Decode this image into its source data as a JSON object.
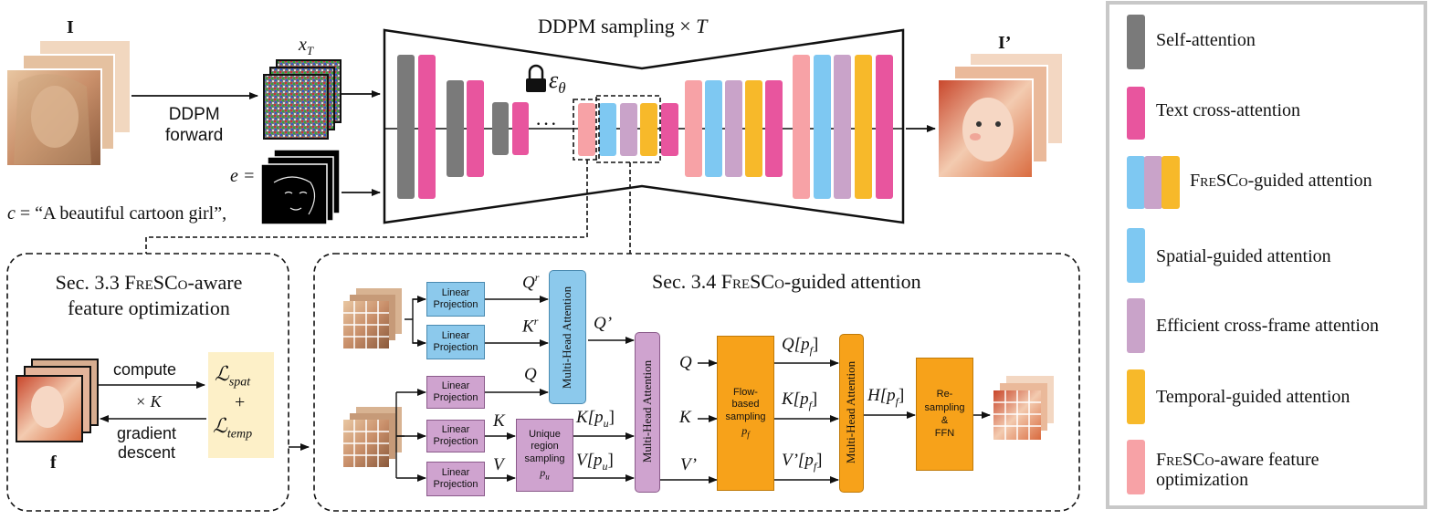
{
  "colors": {
    "self_attention": "#7a7a7a",
    "text_cross_attention": "#e8559e",
    "spatial": "#7ec8f2",
    "efficient": "#c9a3c9",
    "temporal": "#f7b92a",
    "fresco_aware": "#f7a2a6",
    "linear_blue": "#8cc9ec",
    "linear_purple": "#cfa3cf",
    "flow_orange": "#f7a21a",
    "loss_bg": "#fdf0c8"
  },
  "header": {
    "input_label": "I",
    "output_label": "I’",
    "xt_label": "x",
    "xt_sub": "T",
    "ddpm_title": "DDPM sampling × ",
    "ddpm_title_T": "T",
    "ddpm_forward_line1": "DDPM",
    "ddpm_forward_line2": "forward",
    "epsilon": "ε",
    "epsilon_sub": "θ",
    "ellipsis": "···",
    "e_eq": "e =",
    "c_var": "c",
    "c_prompt": " = “A beautiful cartoon girl”,"
  },
  "legend": [
    {
      "label": "Self-attention",
      "icon": "gray-bar"
    },
    {
      "label": "Text cross-attention",
      "icon": "pink-bar"
    },
    {
      "label_sc": "FreSCo",
      "label_rest": "-guided attention",
      "icon": "multi-bar"
    },
    {
      "label": "Spatial-guided attention",
      "icon": "blue-bar"
    },
    {
      "label": "Efficient cross-frame attention",
      "icon": "lilac-bar"
    },
    {
      "label": "Temporal-guided attention",
      "icon": "orange-bar"
    },
    {
      "label_sc": "FreSCo",
      "label_rest": "-aware feature",
      "label_line2": "optimization",
      "icon": "salmon-bar"
    }
  ],
  "sec33": {
    "title_line1_pre": "Sec. 3.3 ",
    "title_line1_sc": "FreSCo",
    "title_line1_post": "-aware",
    "title_line2": "feature optimization",
    "compute": "compute",
    "times_k": "× K",
    "gradient": "gradient",
    "descent": "descent",
    "f_label": "f",
    "loss_spat": "ℒ",
    "loss_spat_sub": "spat",
    "plus": "+",
    "loss_temp": "ℒ",
    "loss_temp_sub": "temp"
  },
  "sec34": {
    "title_pre": "Sec. 3.4 ",
    "title_sc": "FreSCo",
    "title_post": "-guided attention",
    "linear_projection_line1": "Linear",
    "linear_projection_line2": "Projection",
    "qr": "Q",
    "qr_sup": "r",
    "kr": "K",
    "kr_sup": "r",
    "q_prime": "Q’",
    "q": "Q",
    "k": "K",
    "v": "V",
    "mha": "Multi-Head Attention",
    "unique_line1": "Unique",
    "unique_line2": "region",
    "unique_line3": "sampling",
    "unique_pu": "p",
    "unique_pu_sub": "u",
    "k_pu": "K[p",
    "k_pu_sub": "u",
    "v_pu": "V[p",
    "v_pu_sub": "u",
    "q2": "Q",
    "k2": "K",
    "v_prime": "V’",
    "flow_line1": "Flow-",
    "flow_line2": "based",
    "flow_line3": "sampling",
    "flow_pf": "p",
    "flow_pf_sub": "f",
    "q_pf": "Q[p",
    "q_pf_sub": "f",
    "k_pf": "K[p",
    "k_pf_sub": "f",
    "v_pf": "V’[p",
    "v_pf_sub": "f",
    "h_pf": "H[p",
    "h_pf_sub": "f",
    "resampling_line1": "Re-",
    "resampling_line2": "sampling",
    "resampling_line3": "&",
    "resampling_line4": "FFN",
    "close_bracket": "]"
  }
}
